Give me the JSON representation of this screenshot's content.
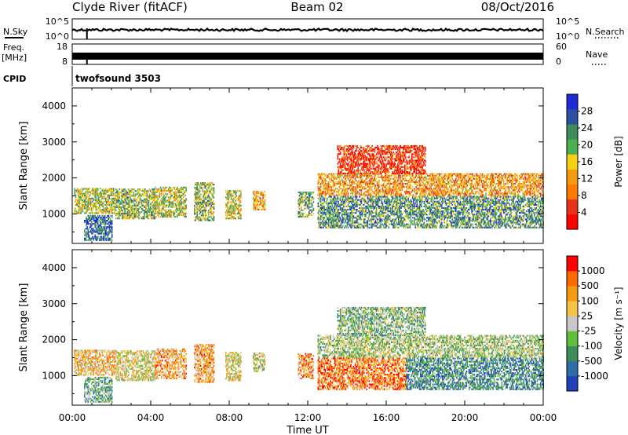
{
  "header": {
    "title_left": "Clyde River (fitACF)",
    "title_center": "Beam 02",
    "title_right": "08/Oct/2016"
  },
  "strips": {
    "nsky_label": "N.Sky",
    "nsky_ticks": [
      "10^5",
      "10^0"
    ],
    "nsearch_label": "N.Search",
    "nsearch_ticks": [
      "10^5",
      "10^0"
    ],
    "freq_label_1": "Freq.",
    "freq_label_2": "[MHz]",
    "freq_ticks": [
      "18",
      "8"
    ],
    "nave_label": "Nave",
    "nave_ticks": [
      "60",
      "0"
    ],
    "cpid_label": "CPID",
    "cpid_text": "twofsound 3503",
    "marker_hour": 0.75
  },
  "chart_data": [
    {
      "type": "heatmap",
      "name": "power",
      "ylabel": "Slant Range [km]",
      "xlabel": "Time UT",
      "ylim": [
        180,
        4500
      ],
      "xlim": [
        0,
        24
      ],
      "yticks": [
        1000,
        2000,
        3000,
        4000
      ],
      "xticks": [
        "00:00",
        "04:00",
        "08:00",
        "12:00",
        "16:00",
        "20:00",
        "00:00"
      ],
      "colorbar": {
        "label": "Power [dB]",
        "ticks": [
          "28",
          "24",
          "20",
          "16",
          "12",
          "8",
          "4"
        ],
        "colors": [
          "#ff0000",
          "#e8321e",
          "#ff7a00",
          "#f39c12",
          "#f7d117",
          "#4caf50",
          "#3d8c5a",
          "#2c4fa0",
          "#1f2bd6"
        ]
      },
      "regions": [
        {
          "t0": 0.1,
          "t1": 2.2,
          "r0": 1000,
          "r1": 1700,
          "level": 0.55
        },
        {
          "t0": 0.6,
          "t1": 2.0,
          "r0": 250,
          "r1": 950,
          "level": 0.8
        },
        {
          "t0": 2.2,
          "t1": 4.2,
          "r0": 850,
          "r1": 1700,
          "level": 0.6
        },
        {
          "t0": 4.2,
          "t1": 5.8,
          "r0": 900,
          "r1": 1750,
          "level": 0.55
        },
        {
          "t0": 6.2,
          "t1": 7.2,
          "r0": 800,
          "r1": 1850,
          "level": 0.6
        },
        {
          "t0": 7.8,
          "t1": 8.6,
          "r0": 850,
          "r1": 1650,
          "level": 0.5
        },
        {
          "t0": 9.2,
          "t1": 9.8,
          "r0": 1100,
          "r1": 1600,
          "level": 0.4
        },
        {
          "t0": 11.5,
          "t1": 12.3,
          "r0": 900,
          "r1": 1600,
          "level": 0.65
        },
        {
          "t0": 12.5,
          "t1": 24.0,
          "r0": 600,
          "r1": 1500,
          "level": 0.7
        },
        {
          "t0": 12.5,
          "t1": 24.0,
          "r0": 1500,
          "r1": 2100,
          "level": 0.35
        },
        {
          "t0": 13.5,
          "t1": 18.0,
          "r0": 2100,
          "r1": 2900,
          "level": 0.15
        }
      ]
    },
    {
      "type": "heatmap",
      "name": "velocity",
      "ylabel": "Slant Range [km]",
      "xlabel": "Time UT",
      "ylim": [
        180,
        4500
      ],
      "xlim": [
        0,
        24
      ],
      "yticks": [
        1000,
        2000,
        3000,
        4000
      ],
      "xticks": [
        "00:00",
        "04:00",
        "08:00",
        "12:00",
        "16:00",
        "20:00",
        "00:00"
      ],
      "colorbar": {
        "label": "Velocity [m s⁻¹]",
        "ticks": [
          "1000",
          "500",
          "100",
          "25",
          "-25",
          "-100",
          "-500",
          "-1000"
        ],
        "colors": [
          "#2141b8",
          "#2c6ea8",
          "#3d8c5a",
          "#5fbf3b",
          "#c8c8c8",
          "#f6c445",
          "#f39c12",
          "#ff6a00",
          "#ff0000"
        ]
      },
      "regions": [
        {
          "t0": 0.1,
          "t1": 2.2,
          "r0": 1000,
          "r1": 1700,
          "level": 0.65
        },
        {
          "t0": 0.6,
          "t1": 2.0,
          "r0": 250,
          "r1": 950,
          "level": 0.35
        },
        {
          "t0": 2.2,
          "t1": 4.2,
          "r0": 850,
          "r1": 1700,
          "level": 0.55
        },
        {
          "t0": 4.2,
          "t1": 5.8,
          "r0": 900,
          "r1": 1750,
          "level": 0.7
        },
        {
          "t0": 6.2,
          "t1": 7.2,
          "r0": 800,
          "r1": 1850,
          "level": 0.7
        },
        {
          "t0": 7.8,
          "t1": 8.6,
          "r0": 850,
          "r1": 1650,
          "level": 0.55
        },
        {
          "t0": 9.2,
          "t1": 9.8,
          "r0": 1100,
          "r1": 1600,
          "level": 0.5
        },
        {
          "t0": 11.5,
          "t1": 12.3,
          "r0": 900,
          "r1": 1600,
          "level": 0.75
        },
        {
          "t0": 12.5,
          "t1": 17.0,
          "r0": 600,
          "r1": 1500,
          "level": 0.8
        },
        {
          "t0": 17.0,
          "t1": 24.0,
          "r0": 600,
          "r1": 1500,
          "level": 0.25
        },
        {
          "t0": 12.5,
          "t1": 24.0,
          "r0": 1500,
          "r1": 2100,
          "level": 0.45
        },
        {
          "t0": 13.5,
          "t1": 18.0,
          "r0": 2100,
          "r1": 2900,
          "level": 0.4
        }
      ]
    }
  ]
}
